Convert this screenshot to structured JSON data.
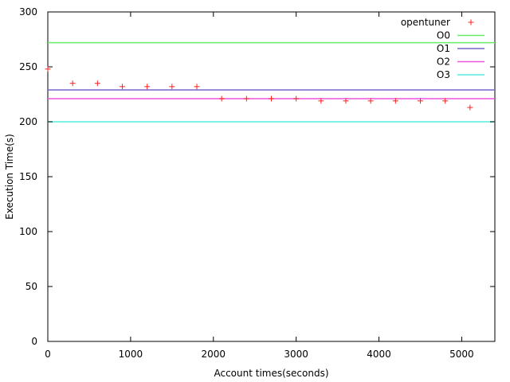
{
  "chart_data": {
    "type": "scatter",
    "xlabel": "Account times(seconds)",
    "ylabel": "Execution Time(s)",
    "xlim": [
      0,
      5400
    ],
    "ylim": [
      0,
      300
    ],
    "xticks": [
      0,
      1000,
      2000,
      3000,
      4000,
      5000
    ],
    "yticks": [
      0,
      50,
      100,
      150,
      200,
      250,
      300
    ],
    "grid": false,
    "legend_position": "top-right",
    "series": [
      {
        "name": "opentuner",
        "kind": "points",
        "marker": "plus",
        "color": "#ff2020",
        "x": [
          0,
          300,
          600,
          900,
          1200,
          1500,
          1800,
          2100,
          2400,
          2700,
          3000,
          3300,
          3600,
          3900,
          4200,
          4500,
          4800,
          5100
        ],
        "y": [
          248,
          235,
          235,
          232,
          232,
          232,
          232,
          221,
          221,
          221,
          221,
          219,
          219,
          219,
          219,
          219,
          219,
          213
        ]
      },
      {
        "name": "O0",
        "kind": "hline",
        "y": 272,
        "color": "#66ee66"
      },
      {
        "name": "O1",
        "kind": "hline",
        "y": 229,
        "color": "#7766cc"
      },
      {
        "name": "O2",
        "kind": "hline",
        "y": 221,
        "color": "#ee55dd"
      },
      {
        "name": "O3",
        "kind": "hline",
        "y": 200,
        "color": "#55eedd"
      }
    ]
  }
}
